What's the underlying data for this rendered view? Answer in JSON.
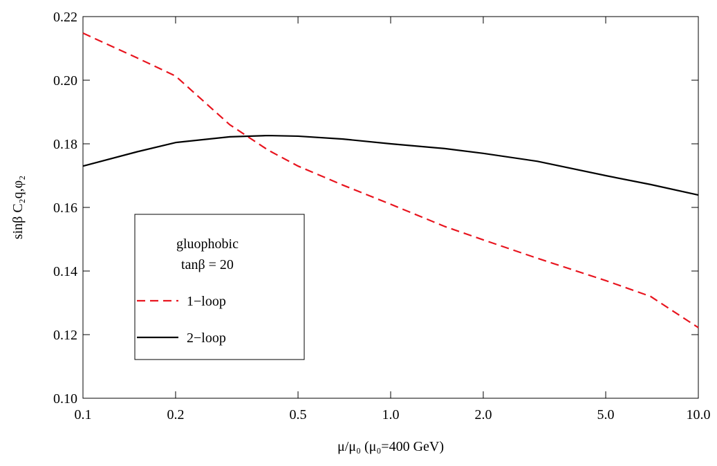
{
  "chart_data": {
    "type": "line",
    "x_label": "μ/μ₀ (μ₀=400 GeV)",
    "y_label": "sinβ C₂q,φ₂",
    "x": [
      0.1,
      0.15,
      0.2,
      0.3,
      0.4,
      0.5,
      0.7,
      1,
      1.5,
      2,
      3,
      5,
      7,
      10
    ],
    "series": [
      {
        "name": "1−loop",
        "color": "#e8141e",
        "dash": true,
        "values": [
          0.2148,
          0.207,
          0.2013,
          0.186,
          0.178,
          0.173,
          0.167,
          0.161,
          0.154,
          0.1498,
          0.144,
          0.137,
          0.132,
          0.1222
        ]
      },
      {
        "name": "2−loop",
        "color": "#000000",
        "dash": false,
        "values": [
          0.173,
          0.1775,
          0.1804,
          0.1822,
          0.1826,
          0.1824,
          0.1815,
          0.18,
          0.1785,
          0.177,
          0.1745,
          0.17,
          0.1672,
          0.1639
        ]
      }
    ],
    "legend_title": [
      "gluophobic",
      "tanβ = 20"
    ],
    "xlim": [
      0.1,
      10
    ],
    "x_log": true,
    "xticks": [
      0.1,
      0.2,
      0.5,
      {
        "value": 1,
        "label": "1.0"
      },
      {
        "value": 2,
        "label": "2.0"
      },
      {
        "value": 5,
        "label": "5.0"
      },
      {
        "value": 10,
        "label": "10.0"
      }
    ],
    "ylim": [
      0.1,
      0.22
    ],
    "yticks": [
      {
        "value": 0.1,
        "label": "0.10"
      },
      0.12,
      0.14,
      0.16,
      0.18,
      {
        "value": 0.2,
        "label": "0.20"
      },
      0.22
    ]
  }
}
